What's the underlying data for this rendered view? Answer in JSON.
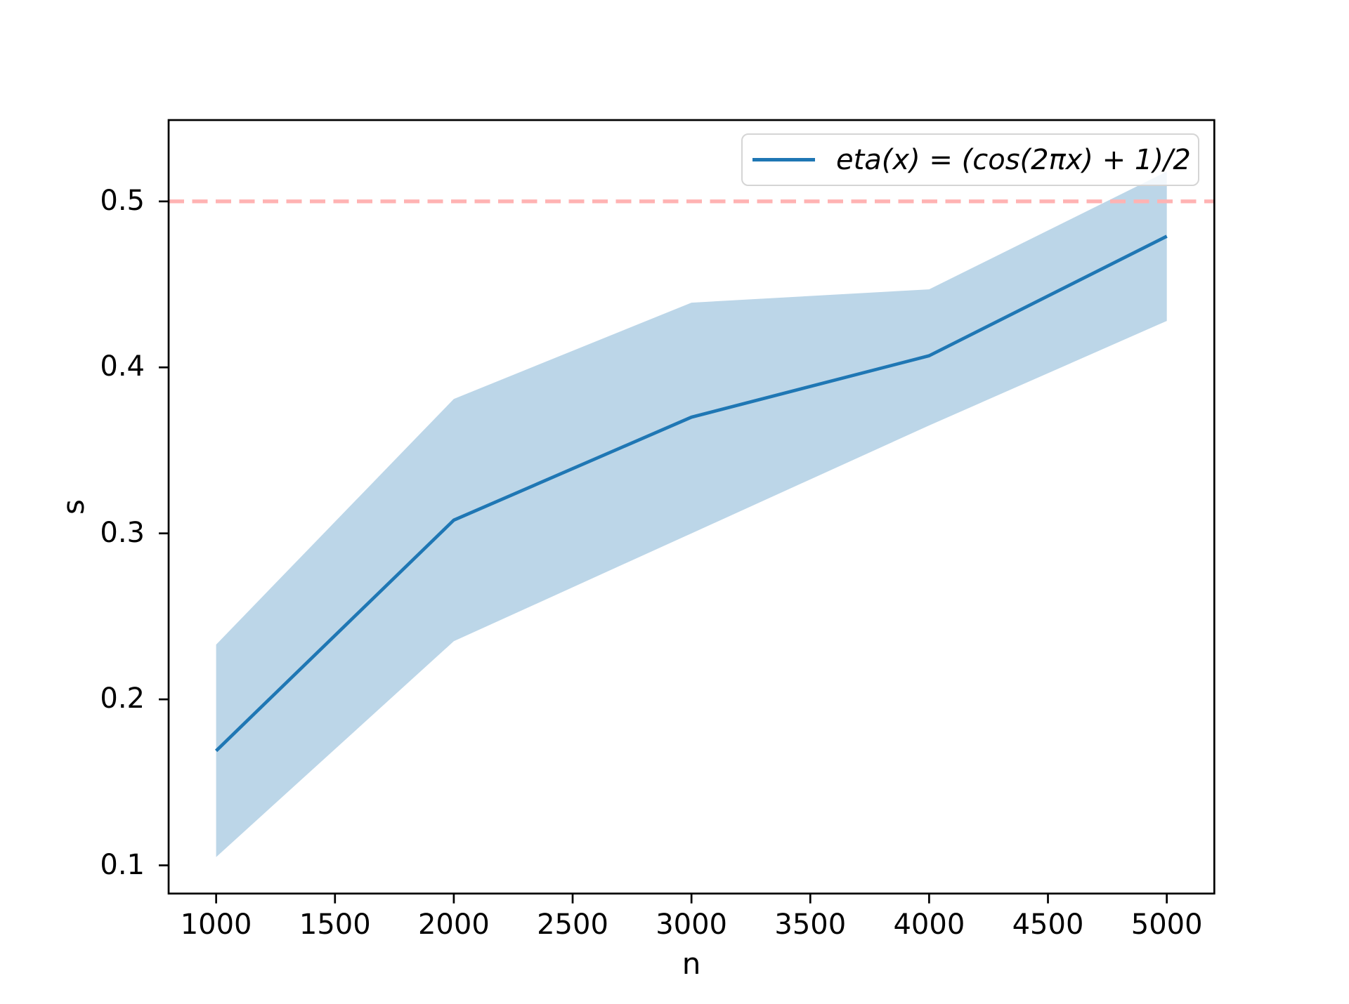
{
  "figure": {
    "background": "#ffffff"
  },
  "axes": {
    "xlabel": "n",
    "ylabel": "s"
  },
  "legend": {
    "position": "upper right",
    "label": "eta(x) = (cos(2πx) + 1)/2"
  },
  "colors": {
    "series_line": "#1f77b4",
    "confidence_band": "#bcd6e8",
    "threshold_line": "#ffb3b3",
    "spine": "#000000",
    "legend_border": "#d5d5d5",
    "text": "#000000"
  },
  "chart_data": {
    "type": "line",
    "title": "",
    "xlabel": "n",
    "ylabel": "s",
    "grid": false,
    "x": [
      1000,
      2000,
      3000,
      4000,
      5000
    ],
    "series": [
      {
        "name": "eta(x) = (cos(2πx) + 1)/2",
        "values": [
          0.169,
          0.308,
          0.37,
          0.407,
          0.479
        ],
        "band_upper": [
          0.233,
          0.381,
          0.439,
          0.447,
          0.518
        ],
        "band_lower": [
          0.105,
          0.235,
          0.3,
          0.365,
          0.428
        ],
        "color": "#1f77b4",
        "band_color": "#bcd6e8"
      }
    ],
    "threshold_line": {
      "y": 0.5,
      "style": "dashed",
      "color": "#ffb3b3"
    },
    "x_ticks": [
      1000,
      1500,
      2000,
      2500,
      3000,
      3500,
      4000,
      4500,
      5000
    ],
    "x_tick_labels": [
      "1000",
      "1500",
      "2000",
      "2500",
      "3000",
      "3500",
      "4000",
      "4500",
      "5000"
    ],
    "y_ticks": [
      0.1,
      0.2,
      0.3,
      0.4,
      0.5
    ],
    "y_tick_labels": [
      "0.1",
      "0.2",
      "0.3",
      "0.4",
      "0.5"
    ],
    "xlim": [
      800,
      5200
    ],
    "ylim": [
      0.083,
      0.549
    ],
    "legend_position": "upper right"
  }
}
